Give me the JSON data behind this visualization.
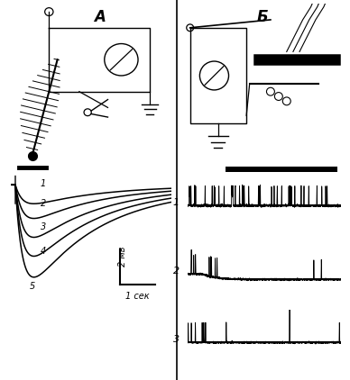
{
  "title_A": "А",
  "title_B": "Б",
  "background_color": "#ffffff",
  "labels_1_to_5": [
    "1",
    "2",
    "3",
    "4",
    "5"
  ],
  "right_labels": [
    "1",
    "2",
    "3"
  ],
  "scale_2mv": "2 мв",
  "scale_1sec": "1 сек",
  "fig_width": 3.88,
  "fig_height": 4.22,
  "eog_amplitudes": [
    1.8,
    3.2,
    5.0,
    6.8,
    8.8
  ],
  "eog_tau_rise": 0.5,
  "eog_tau_fall": 3.8,
  "eog_onset": 0.3
}
